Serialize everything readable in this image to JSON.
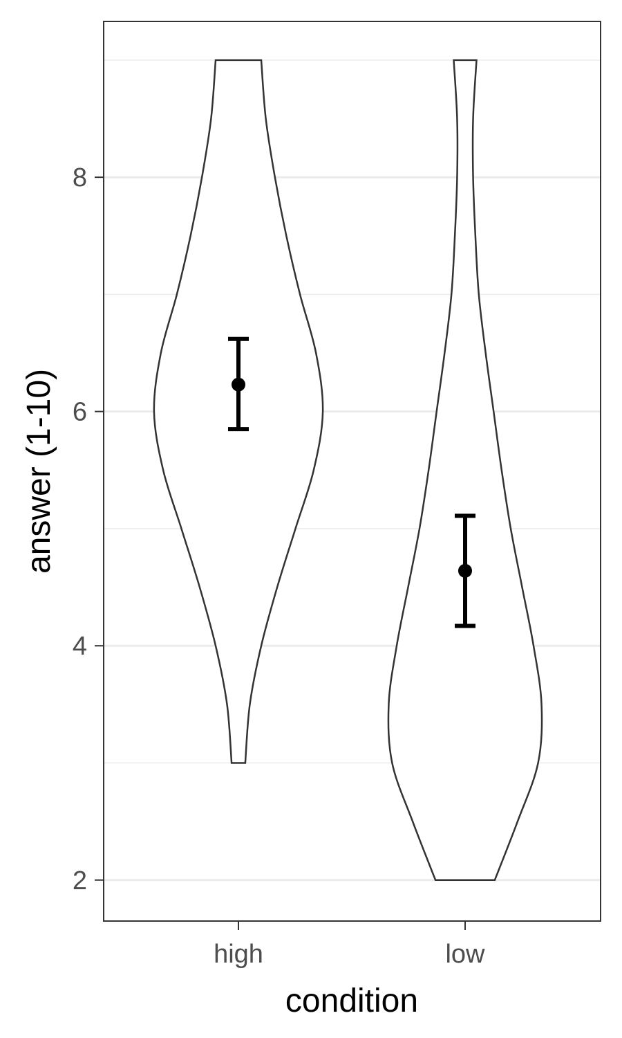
{
  "chart_data": {
    "type": "violin",
    "xlabel": "condition",
    "ylabel": "answer (1-10)",
    "categories": [
      "high",
      "low"
    ],
    "ylim": [
      1.65,
      9.33
    ],
    "y_ticks": [
      2,
      4,
      6,
      8
    ],
    "y_minor_ticks": [
      3,
      5,
      7,
      9
    ],
    "grid": true,
    "colors": {
      "outline": "#333333",
      "grid": "#ebebeb",
      "summary": "#000000"
    },
    "violins": [
      {
        "category": "high",
        "profile": [
          {
            "y": 3.0,
            "w": 0.06
          },
          {
            "y": 3.5,
            "w": 0.1
          },
          {
            "y": 4.0,
            "w": 0.2
          },
          {
            "y": 4.5,
            "w": 0.34
          },
          {
            "y": 5.0,
            "w": 0.5
          },
          {
            "y": 5.5,
            "w": 0.66
          },
          {
            "y": 6.0,
            "w": 0.74
          },
          {
            "y": 6.5,
            "w": 0.68
          },
          {
            "y": 7.0,
            "w": 0.54
          },
          {
            "y": 7.5,
            "w": 0.42
          },
          {
            "y": 8.0,
            "w": 0.32
          },
          {
            "y": 8.5,
            "w": 0.24
          },
          {
            "y": 9.0,
            "w": 0.2
          }
        ]
      },
      {
        "category": "low",
        "profile": [
          {
            "y": 2.0,
            "w": 0.26
          },
          {
            "y": 2.5,
            "w": 0.46
          },
          {
            "y": 3.0,
            "w": 0.64
          },
          {
            "y": 3.5,
            "w": 0.67
          },
          {
            "y": 4.0,
            "w": 0.6
          },
          {
            "y": 4.5,
            "w": 0.5
          },
          {
            "y": 5.0,
            "w": 0.4
          },
          {
            "y": 5.5,
            "w": 0.32
          },
          {
            "y": 6.0,
            "w": 0.25
          },
          {
            "y": 6.5,
            "w": 0.18
          },
          {
            "y": 7.0,
            "w": 0.12
          },
          {
            "y": 7.5,
            "w": 0.09
          },
          {
            "y": 8.0,
            "w": 0.07
          },
          {
            "y": 8.5,
            "w": 0.07
          },
          {
            "y": 9.0,
            "w": 0.1
          }
        ]
      }
    ],
    "summary": [
      {
        "category": "high",
        "mean": 6.23,
        "lower": 5.85,
        "upper": 6.62
      },
      {
        "category": "low",
        "mean": 4.64,
        "lower": 4.17,
        "upper": 5.11
      }
    ]
  }
}
